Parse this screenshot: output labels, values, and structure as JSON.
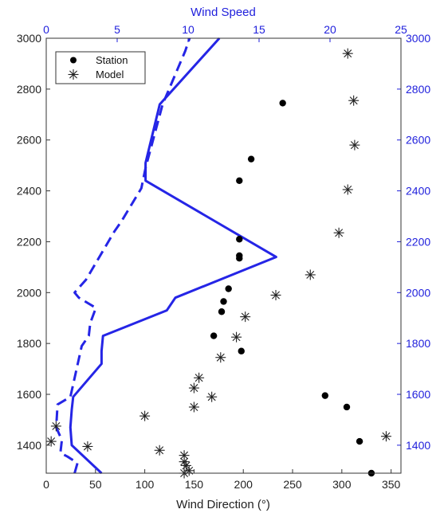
{
  "chart_data": {
    "type": "scatter",
    "x_label_bottom": "Wind Direction (°)",
    "x_label_top": "Wind Speed",
    "bottom_axis": {
      "range": [
        0,
        360
      ],
      "ticks": [
        0,
        50,
        100,
        150,
        200,
        250,
        300,
        350
      ]
    },
    "top_axis": {
      "range": [
        0,
        25
      ],
      "ticks": [
        0,
        5,
        10,
        15,
        20,
        25
      ]
    },
    "y_axis": {
      "range": [
        1290,
        3000
      ],
      "ticks": [
        1400,
        1600,
        1800,
        2000,
        2200,
        2400,
        2600,
        2800,
        3000
      ]
    },
    "legend": {
      "placement": "top-left",
      "entries": [
        {
          "label": "Station",
          "marker": "dot"
        },
        {
          "label": "Model",
          "marker": "asterisk"
        }
      ]
    },
    "colors": {
      "axis_secondary": "#1f1fdc",
      "markers": "#000000",
      "lines": "#2525e6"
    },
    "series": [
      {
        "name": "Station",
        "axis": "direction",
        "style": "dot",
        "points": [
          [
            330,
            1290
          ],
          [
            318,
            1415
          ],
          [
            305,
            1550
          ],
          [
            283,
            1595
          ],
          [
            198,
            1770
          ],
          [
            170,
            1830
          ],
          [
            178,
            1925
          ],
          [
            180,
            1965
          ],
          [
            185,
            2015
          ],
          [
            196,
            2135
          ],
          [
            196,
            2145
          ],
          [
            196,
            2210
          ],
          [
            196,
            2440
          ],
          [
            208,
            2525
          ],
          [
            240,
            2745
          ]
        ]
      },
      {
        "name": "Model",
        "axis": "direction",
        "style": "asterisk",
        "points": [
          [
            140,
            1290
          ],
          [
            145,
            1300
          ],
          [
            142,
            1320
          ],
          [
            140,
            1335
          ],
          [
            140,
            1360
          ],
          [
            115,
            1380
          ],
          [
            42,
            1395
          ],
          [
            5,
            1415
          ],
          [
            345,
            1435
          ],
          [
            10,
            1475
          ],
          [
            100,
            1515
          ],
          [
            150,
            1550
          ],
          [
            168,
            1590
          ],
          [
            150,
            1625
          ],
          [
            155,
            1665
          ],
          [
            177,
            1745
          ],
          [
            193,
            1825
          ],
          [
            202,
            1905
          ],
          [
            233,
            1990
          ],
          [
            268,
            2070
          ],
          [
            297,
            2235
          ],
          [
            306,
            2405
          ],
          [
            313,
            2580
          ],
          [
            312,
            2755
          ],
          [
            306,
            2940
          ]
        ]
      },
      {
        "axis": "speed",
        "style": "solid-line",
        "points": [
          [
            3.9,
            1290
          ],
          [
            1.8,
            1400
          ],
          [
            1.7,
            1470
          ],
          [
            1.8,
            1540
          ],
          [
            1.9,
            1590
          ],
          [
            3.9,
            1720
          ],
          [
            3.9,
            1770
          ],
          [
            4.0,
            1830
          ],
          [
            8.5,
            1930
          ],
          [
            9.1,
            1980
          ],
          [
            16.2,
            2140
          ],
          [
            7.0,
            2440
          ],
          [
            7.0,
            2510
          ],
          [
            8.0,
            2740
          ],
          [
            12.2,
            3000
          ]
        ]
      },
      {
        "axis": "speed",
        "style": "dashed-line",
        "points": [
          [
            2.0,
            1290
          ],
          [
            2.2,
            1330
          ],
          [
            1.5,
            1355
          ],
          [
            1.0,
            1370
          ],
          [
            1.1,
            1420
          ],
          [
            0.7,
            1470
          ],
          [
            0.8,
            1560
          ],
          [
            1.7,
            1590
          ],
          [
            2.5,
            1790
          ],
          [
            3.0,
            1830
          ],
          [
            3.1,
            1880
          ],
          [
            3.5,
            1940
          ],
          [
            2.3,
            1980
          ],
          [
            2.0,
            2000
          ],
          [
            2.8,
            2050
          ],
          [
            4.8,
            2240
          ],
          [
            5.3,
            2280
          ],
          [
            6.7,
            2410
          ],
          [
            7.0,
            2490
          ],
          [
            8.2,
            2740
          ],
          [
            9.8,
            2950
          ],
          [
            10.1,
            3000
          ]
        ]
      }
    ]
  }
}
